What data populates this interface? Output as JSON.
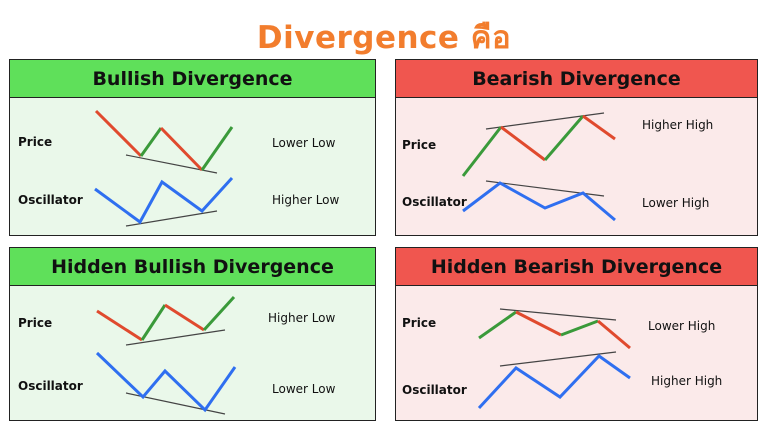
{
  "title": "Divergence คือ",
  "panels": [
    {
      "heading": "Bullish Divergence",
      "price_label": "Price",
      "osc_label": "Oscillator",
      "price_note": "Lower Low",
      "osc_note": "Higher Low"
    },
    {
      "heading": "Bearish Divergence",
      "price_label": "Price",
      "osc_label": "Oscillator",
      "price_note": "Higher High",
      "osc_note": "Lower High"
    },
    {
      "heading": "Hidden Bullish Divergence",
      "price_label": "Price",
      "osc_label": "Oscillator",
      "price_note": "Higher Low",
      "osc_note": "Lower Low"
    },
    {
      "heading": "Hidden Bearish Divergence",
      "price_label": "Price",
      "osc_label": "Oscillator",
      "price_note": "Lower High",
      "osc_note": "Higher High"
    }
  ],
  "colors": {
    "title": "#f27d2d",
    "bullish_header": "#5fe05a",
    "bearish_header": "#f0564f",
    "down_segment": "#e04a2e",
    "up_segment": "#3a9a3a",
    "oscillator": "#2f6ff0",
    "trendline": "#444444"
  }
}
